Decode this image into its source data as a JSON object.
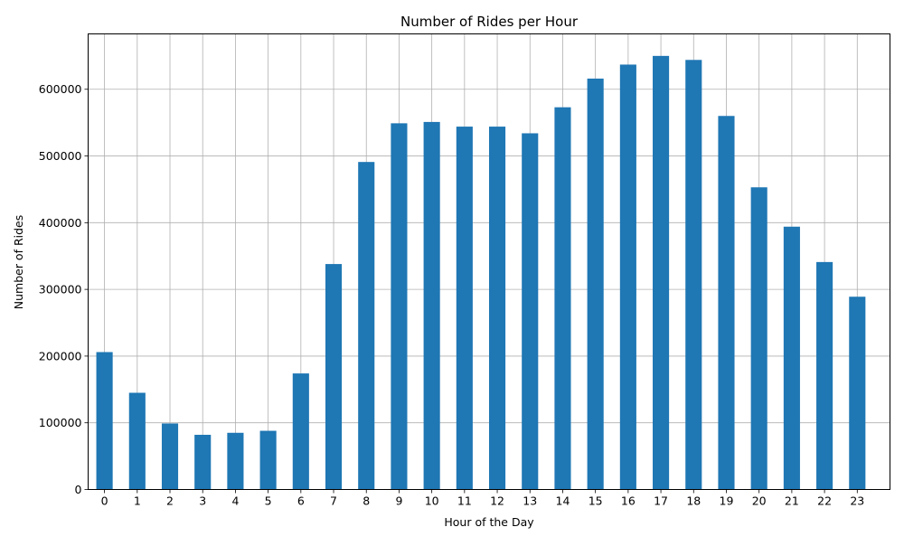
{
  "chart_data": {
    "type": "bar",
    "title": "Number of Rides per Hour",
    "xlabel": "Hour of the Day",
    "ylabel": "Number of Rides",
    "categories": [
      "0",
      "1",
      "2",
      "3",
      "4",
      "5",
      "6",
      "7",
      "8",
      "9",
      "10",
      "11",
      "12",
      "13",
      "14",
      "15",
      "16",
      "17",
      "18",
      "19",
      "20",
      "21",
      "22",
      "23"
    ],
    "values": [
      206000,
      145000,
      99000,
      82000,
      85000,
      88000,
      174000,
      338000,
      491000,
      549000,
      551000,
      544000,
      544000,
      534000,
      573000,
      616000,
      637000,
      650000,
      644000,
      560000,
      453000,
      394000,
      341000,
      289000
    ],
    "ylim": [
      0,
      683000
    ],
    "yticks": [
      0,
      100000,
      200000,
      300000,
      400000,
      500000,
      600000
    ],
    "ytick_labels": [
      "0",
      "100000",
      "200000",
      "300000",
      "400000",
      "500000",
      "600000"
    ],
    "bar_color": "#1f77b4",
    "grid": true,
    "legend": "none"
  }
}
